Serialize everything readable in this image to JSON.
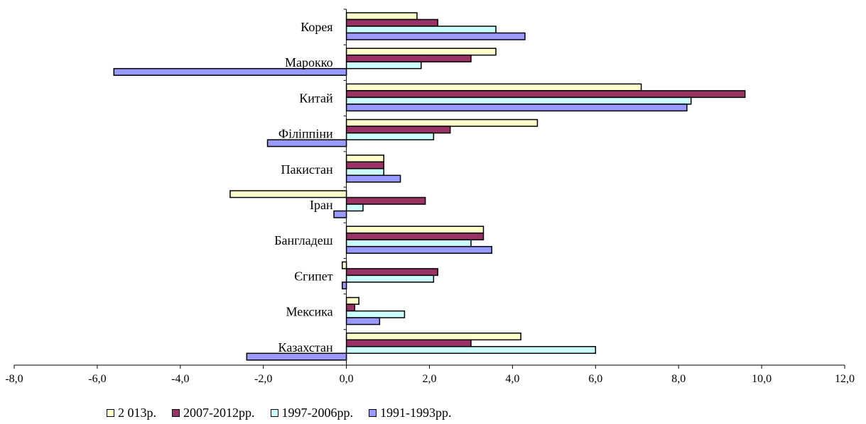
{
  "chart_data": {
    "type": "bar",
    "orientation": "horizontal",
    "categories": [
      "Корея",
      "Марокко",
      "Китай",
      "Філіппіни",
      "Пакистан",
      "Іран",
      "Бангладеш",
      "Єгипет",
      "Мексика",
      "Казахстан"
    ],
    "series": [
      {
        "name": "2 013р.",
        "color": "#FFFFCC",
        "values": [
          1.7,
          3.6,
          7.1,
          4.6,
          0.9,
          -2.8,
          3.3,
          -0.1,
          0.3,
          4.2
        ]
      },
      {
        "name": "2007-2012рр.",
        "color": "#993366",
        "values": [
          2.2,
          3.0,
          9.6,
          2.5,
          0.9,
          1.9,
          3.3,
          2.2,
          0.2,
          3.0
        ]
      },
      {
        "name": "1997-2006рр.",
        "color": "#CCFFFF",
        "values": [
          3.6,
          1.8,
          8.3,
          2.1,
          0.9,
          0.4,
          3.0,
          2.1,
          1.4,
          6.0
        ]
      },
      {
        "name": "1991-1993рр.",
        "color": "#9999FF",
        "values": [
          4.3,
          -5.6,
          8.2,
          -1.9,
          1.3,
          -0.3,
          3.5,
          -0.1,
          0.8,
          -2.4
        ]
      }
    ],
    "xlim": [
      -8,
      12
    ],
    "xticks": [
      "-8,0",
      "-6,0",
      "-4,0",
      "-2,0",
      "0,0",
      "2,0",
      "4,0",
      "6,0",
      "8,0",
      "10,0",
      "12,0"
    ],
    "legend_position": "bottom",
    "grid": false
  }
}
